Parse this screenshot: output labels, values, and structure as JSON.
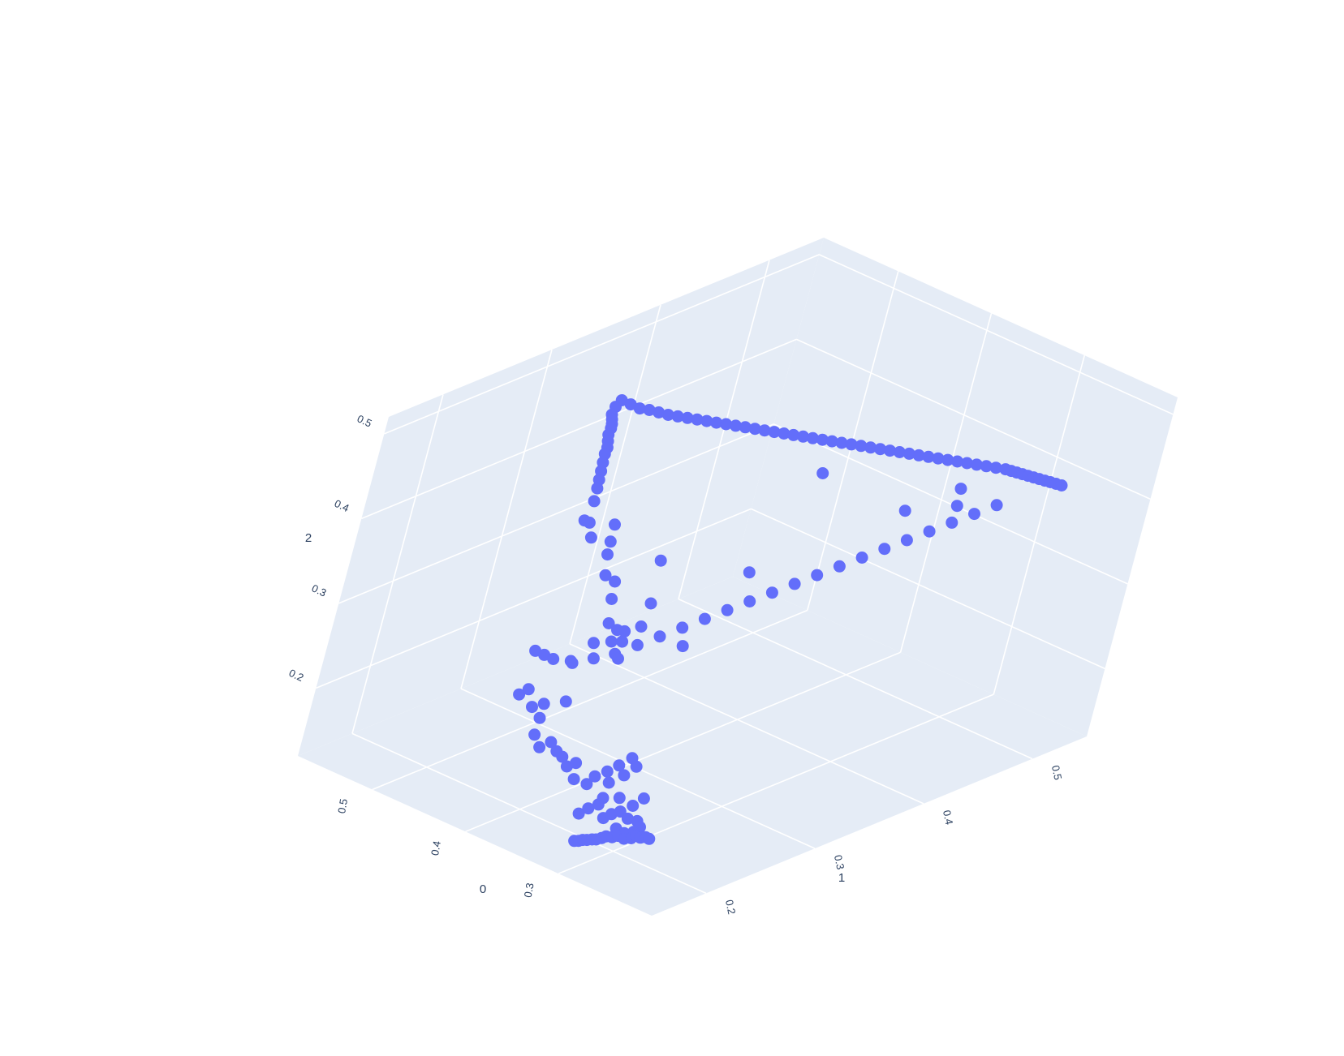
{
  "chart_data": {
    "type": "scatter3d",
    "title": "",
    "axes": {
      "x": {
        "title": "0",
        "range": [
          0.2,
          0.58
        ],
        "tickvals": [
          0.3,
          0.4,
          0.5
        ],
        "ticklabels": [
          "0.3",
          "0.4",
          "0.5"
        ]
      },
      "y": {
        "title": "1",
        "range": [
          0.15,
          0.55
        ],
        "tickvals": [
          0.2,
          0.3,
          0.4,
          0.5
        ],
        "ticklabels": [
          "0.2",
          "0.3",
          "0.4",
          "0.5"
        ]
      },
      "z": {
        "title": "2",
        "range": [
          0.12,
          0.52
        ],
        "tickvals": [
          0.2,
          0.3,
          0.4,
          0.5
        ],
        "ticklabels": [
          "0.2",
          "0.3",
          "0.4",
          "0.5"
        ]
      }
    },
    "grid": true,
    "legend": "none",
    "marker_color": "#636efa",
    "pane_color": "#e5ecf6",
    "grid_color": "#ffffff",
    "points": [
      [
        0.25,
        0.18,
        0.17
      ],
      [
        0.252,
        0.178,
        0.172
      ],
      [
        0.255,
        0.176,
        0.171
      ],
      [
        0.258,
        0.174,
        0.173
      ],
      [
        0.26,
        0.172,
        0.17
      ],
      [
        0.262,
        0.175,
        0.175
      ],
      [
        0.265,
        0.17,
        0.168
      ],
      [
        0.268,
        0.172,
        0.172
      ],
      [
        0.27,
        0.168,
        0.17
      ],
      [
        0.273,
        0.166,
        0.168
      ],
      [
        0.275,
        0.17,
        0.175
      ],
      [
        0.278,
        0.165,
        0.167
      ],
      [
        0.28,
        0.163,
        0.165
      ],
      [
        0.283,
        0.161,
        0.163
      ],
      [
        0.286,
        0.16,
        0.162
      ],
      [
        0.289,
        0.158,
        0.161
      ],
      [
        0.292,
        0.157,
        0.16
      ],
      [
        0.295,
        0.156,
        0.158
      ],
      [
        0.298,
        0.155,
        0.157
      ],
      [
        0.26,
        0.178,
        0.18
      ],
      [
        0.266,
        0.18,
        0.183
      ],
      [
        0.272,
        0.176,
        0.185
      ],
      [
        0.28,
        0.175,
        0.19
      ],
      [
        0.285,
        0.172,
        0.186
      ],
      [
        0.29,
        0.17,
        0.18
      ],
      [
        0.276,
        0.182,
        0.195
      ],
      [
        0.27,
        0.185,
        0.205
      ],
      [
        0.288,
        0.179,
        0.2
      ],
      [
        0.3,
        0.175,
        0.196
      ],
      [
        0.3,
        0.172,
        0.19
      ],
      [
        0.305,
        0.168,
        0.185
      ],
      [
        0.31,
        0.165,
        0.178
      ],
      [
        0.303,
        0.18,
        0.21
      ],
      [
        0.295,
        0.185,
        0.22
      ],
      [
        0.29,
        0.19,
        0.23
      ],
      [
        0.298,
        0.192,
        0.235
      ],
      [
        0.305,
        0.188,
        0.225
      ],
      [
        0.312,
        0.185,
        0.216
      ],
      [
        0.318,
        0.18,
        0.21
      ],
      [
        0.322,
        0.178,
        0.2
      ],
      [
        0.33,
        0.172,
        0.205
      ],
      [
        0.335,
        0.175,
        0.22
      ],
      [
        0.34,
        0.172,
        0.215
      ],
      [
        0.345,
        0.17,
        0.225
      ],
      [
        0.35,
        0.168,
        0.23
      ],
      [
        0.355,
        0.165,
        0.24
      ],
      [
        0.362,
        0.162,
        0.232
      ],
      [
        0.368,
        0.16,
        0.245
      ],
      [
        0.372,
        0.165,
        0.26
      ],
      [
        0.365,
        0.18,
        0.275
      ],
      [
        0.378,
        0.172,
        0.27
      ],
      [
        0.385,
        0.168,
        0.265
      ],
      [
        0.39,
        0.165,
        0.285
      ],
      [
        0.395,
        0.162,
        0.278
      ],
      [
        0.38,
        0.19,
        0.31
      ],
      [
        0.372,
        0.2,
        0.33
      ],
      [
        0.36,
        0.205,
        0.335
      ],
      [
        0.362,
        0.21,
        0.345
      ],
      [
        0.37,
        0.208,
        0.35
      ],
      [
        0.34,
        0.195,
        0.33
      ],
      [
        0.345,
        0.2,
        0.345
      ],
      [
        0.35,
        0.205,
        0.352
      ],
      [
        0.34,
        0.21,
        0.36
      ],
      [
        0.38,
        0.215,
        0.37
      ],
      [
        0.386,
        0.22,
        0.385
      ],
      [
        0.392,
        0.215,
        0.392
      ],
      [
        0.4,
        0.22,
        0.41
      ],
      [
        0.405,
        0.225,
        0.42
      ],
      [
        0.41,
        0.23,
        0.435
      ],
      [
        0.42,
        0.22,
        0.42
      ],
      [
        0.43,
        0.225,
        0.43
      ],
      [
        0.44,
        0.23,
        0.425
      ],
      [
        0.445,
        0.24,
        0.44
      ],
      [
        0.45,
        0.245,
        0.45
      ],
      [
        0.455,
        0.25,
        0.455
      ],
      [
        0.46,
        0.255,
        0.46
      ],
      [
        0.465,
        0.26,
        0.465
      ],
      [
        0.47,
        0.265,
        0.47
      ],
      [
        0.472,
        0.268,
        0.475
      ],
      [
        0.475,
        0.27,
        0.48
      ],
      [
        0.478,
        0.272,
        0.485
      ],
      [
        0.48,
        0.275,
        0.49
      ],
      [
        0.483,
        0.278,
        0.492
      ],
      [
        0.486,
        0.28,
        0.495
      ],
      [
        0.49,
        0.283,
        0.497
      ],
      [
        0.495,
        0.29,
        0.5
      ],
      [
        0.5,
        0.3,
        0.5
      ],
      [
        0.495,
        0.305,
        0.495
      ],
      [
        0.49,
        0.31,
        0.49
      ],
      [
        0.485,
        0.315,
        0.488
      ],
      [
        0.48,
        0.32,
        0.485
      ],
      [
        0.475,
        0.325,
        0.482
      ],
      [
        0.47,
        0.33,
        0.48
      ],
      [
        0.465,
        0.335,
        0.478
      ],
      [
        0.46,
        0.34,
        0.476
      ],
      [
        0.455,
        0.345,
        0.474
      ],
      [
        0.45,
        0.35,
        0.472
      ],
      [
        0.445,
        0.355,
        0.47
      ],
      [
        0.44,
        0.36,
        0.468
      ],
      [
        0.435,
        0.365,
        0.466
      ],
      [
        0.43,
        0.37,
        0.464
      ],
      [
        0.425,
        0.375,
        0.462
      ],
      [
        0.42,
        0.38,
        0.46
      ],
      [
        0.415,
        0.385,
        0.458
      ],
      [
        0.41,
        0.39,
        0.456
      ],
      [
        0.405,
        0.395,
        0.454
      ],
      [
        0.4,
        0.4,
        0.452
      ],
      [
        0.395,
        0.405,
        0.45
      ],
      [
        0.39,
        0.41,
        0.448
      ],
      [
        0.385,
        0.415,
        0.446
      ],
      [
        0.38,
        0.42,
        0.444
      ],
      [
        0.375,
        0.425,
        0.442
      ],
      [
        0.37,
        0.43,
        0.44
      ],
      [
        0.365,
        0.435,
        0.438
      ],
      [
        0.36,
        0.44,
        0.436
      ],
      [
        0.355,
        0.445,
        0.434
      ],
      [
        0.35,
        0.45,
        0.432
      ],
      [
        0.345,
        0.455,
        0.43
      ],
      [
        0.34,
        0.46,
        0.428
      ],
      [
        0.335,
        0.465,
        0.426
      ],
      [
        0.33,
        0.47,
        0.424
      ],
      [
        0.325,
        0.475,
        0.422
      ],
      [
        0.32,
        0.48,
        0.42
      ],
      [
        0.315,
        0.485,
        0.418
      ],
      [
        0.31,
        0.49,
        0.416
      ],
      [
        0.305,
        0.495,
        0.414
      ],
      [
        0.3,
        0.5,
        0.412
      ],
      [
        0.297,
        0.503,
        0.41
      ],
      [
        0.294,
        0.506,
        0.408
      ],
      [
        0.291,
        0.509,
        0.406
      ],
      [
        0.288,
        0.512,
        0.404
      ],
      [
        0.285,
        0.515,
        0.402
      ],
      [
        0.282,
        0.518,
        0.4
      ],
      [
        0.279,
        0.521,
        0.398
      ],
      [
        0.276,
        0.524,
        0.396
      ],
      [
        0.273,
        0.527,
        0.394
      ],
      [
        0.27,
        0.53,
        0.392
      ],
      [
        0.29,
        0.49,
        0.38
      ],
      [
        0.3,
        0.48,
        0.37
      ],
      [
        0.31,
        0.47,
        0.36
      ],
      [
        0.32,
        0.46,
        0.35
      ],
      [
        0.33,
        0.45,
        0.34
      ],
      [
        0.34,
        0.44,
        0.33
      ],
      [
        0.35,
        0.43,
        0.32
      ],
      [
        0.36,
        0.42,
        0.31
      ],
      [
        0.37,
        0.41,
        0.3
      ],
      [
        0.38,
        0.4,
        0.29
      ],
      [
        0.39,
        0.39,
        0.28
      ],
      [
        0.4,
        0.38,
        0.27
      ],
      [
        0.41,
        0.37,
        0.26
      ],
      [
        0.42,
        0.36,
        0.25
      ],
      [
        0.43,
        0.35,
        0.24
      ],
      [
        0.44,
        0.34,
        0.23
      ],
      [
        0.45,
        0.33,
        0.22
      ],
      [
        0.46,
        0.32,
        0.21
      ],
      [
        0.47,
        0.31,
        0.205
      ],
      [
        0.48,
        0.3,
        0.2
      ],
      [
        0.49,
        0.29,
        0.205
      ],
      [
        0.495,
        0.285,
        0.21
      ],
      [
        0.5,
        0.28,
        0.215
      ],
      [
        0.42,
        0.3,
        0.3
      ],
      [
        0.44,
        0.32,
        0.33
      ],
      [
        0.38,
        0.35,
        0.33
      ],
      [
        0.4,
        0.42,
        0.4
      ],
      [
        0.36,
        0.28,
        0.29
      ],
      [
        0.31,
        0.47,
        0.4
      ],
      [
        0.3,
        0.46,
        0.39
      ],
      [
        0.33,
        0.44,
        0.38
      ]
    ]
  }
}
